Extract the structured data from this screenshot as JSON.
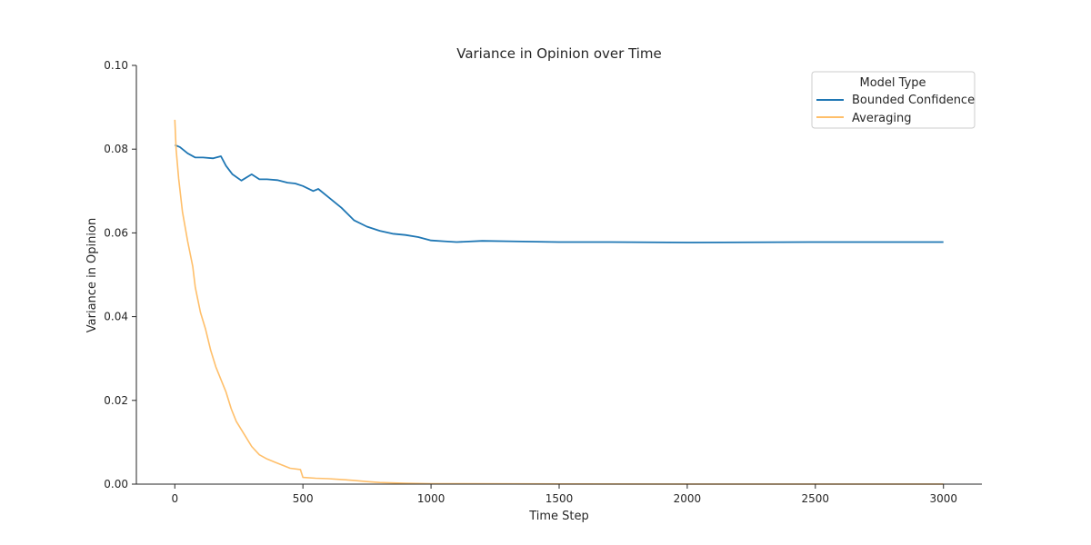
{
  "chart_data": {
    "type": "line",
    "title": "Variance in Opinion over Time",
    "xlabel": "Time Step",
    "ylabel": "Variance in Opinion",
    "xlim": [
      -150,
      3150
    ],
    "ylim": [
      0,
      0.1
    ],
    "xticks": [
      0,
      500,
      1000,
      1500,
      2000,
      2500,
      3000
    ],
    "xtick_labels": [
      "0",
      "500",
      "1000",
      "1500",
      "2000",
      "2500",
      "3000"
    ],
    "yticks": [
      0,
      0.02,
      0.04,
      0.06,
      0.08,
      0.1
    ],
    "ytick_labels": [
      "0.00",
      "0.02",
      "0.04",
      "0.06",
      "0.08",
      "0.10"
    ],
    "grid": false,
    "legend": {
      "title": "Model Type",
      "placement": "top-right"
    },
    "series": [
      {
        "name": "Bounded Confidence",
        "color": "#1f77b4",
        "x": [
          0,
          20,
          50,
          80,
          110,
          150,
          180,
          200,
          225,
          260,
          300,
          330,
          360,
          400,
          440,
          470,
          500,
          540,
          560,
          600,
          650,
          700,
          750,
          800,
          850,
          900,
          950,
          1000,
          1050,
          1100,
          1200,
          1300,
          1500,
          1700,
          2000,
          2500,
          3000
        ],
        "y": [
          0.081,
          0.0805,
          0.079,
          0.078,
          0.078,
          0.0778,
          0.0783,
          0.076,
          0.074,
          0.0725,
          0.074,
          0.0728,
          0.0728,
          0.0726,
          0.072,
          0.0718,
          0.0712,
          0.07,
          0.0705,
          0.0685,
          0.066,
          0.063,
          0.0615,
          0.0605,
          0.0598,
          0.0595,
          0.059,
          0.0582,
          0.058,
          0.0578,
          0.0581,
          0.058,
          0.0578,
          0.0578,
          0.0577,
          0.0578,
          0.0578
        ]
      },
      {
        "name": "Averaging",
        "color": "#ffbf6a",
        "x": [
          0,
          5,
          15,
          30,
          50,
          70,
          80,
          100,
          120,
          140,
          160,
          180,
          200,
          220,
          240,
          260,
          280,
          300,
          330,
          360,
          400,
          450,
          490,
          500,
          550,
          600,
          650,
          700,
          750,
          800,
          900,
          1000,
          1500,
          2000,
          2500,
          3000
        ],
        "y": [
          0.087,
          0.08,
          0.073,
          0.065,
          0.058,
          0.052,
          0.047,
          0.041,
          0.037,
          0.032,
          0.028,
          0.025,
          0.022,
          0.018,
          0.015,
          0.013,
          0.011,
          0.009,
          0.007,
          0.006,
          0.005,
          0.0038,
          0.0035,
          0.0016,
          0.0014,
          0.0013,
          0.0011,
          0.0009,
          0.0006,
          0.0004,
          0.0002,
          0.0001,
          5e-05,
          3e-05,
          2e-05,
          2e-05
        ]
      }
    ]
  }
}
